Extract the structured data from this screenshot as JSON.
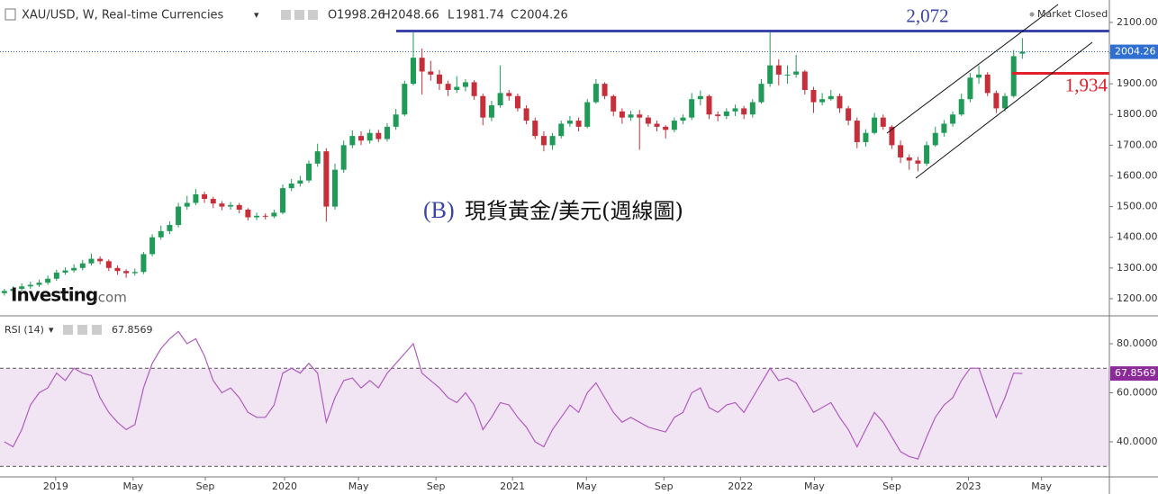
{
  "chart_data": [
    {
      "type": "candlestick",
      "title": "XAU/USD, W, Real-time Currencies",
      "ohlc_labels": [
        "O",
        "H",
        "L",
        "C"
      ],
      "status": "Market Closed",
      "watermark": "Investing",
      "watermark_suffix": ".com",
      "annotation_tag": "(B)",
      "annotation": "現貨黃金/美元(週線圖)",
      "up_color": "#1f9b57",
      "down_color": "#c62f3a",
      "open": [
        1218,
        1225,
        1232,
        1240,
        1245,
        1252,
        1265,
        1285,
        1292,
        1300,
        1315,
        1330,
        1322,
        1300,
        1290,
        1283,
        1287,
        1345,
        1400,
        1420,
        1440,
        1500,
        1512,
        1540,
        1525,
        1510,
        1500,
        1505,
        1490,
        1465,
        1470,
        1468,
        1480,
        1560,
        1575,
        1585,
        1640,
        1680,
        1500,
        1620,
        1700,
        1730,
        1715,
        1740,
        1720,
        1760,
        1800,
        1900,
        1985,
        1940,
        1930,
        1900,
        1880,
        1890,
        1905,
        1860,
        1790,
        1830,
        1870,
        1860,
        1820,
        1780,
        1730,
        1700,
        1730,
        1770,
        1780,
        1760,
        1840,
        1900,
        1860,
        1810,
        1790,
        1800,
        1790,
        1770,
        1760,
        1750,
        1780,
        1790,
        1850,
        1860,
        1800,
        1795,
        1810,
        1820,
        1800,
        1840,
        1900,
        1960,
        1930,
        1930,
        1940,
        1880,
        1840,
        1850,
        1860,
        1820,
        1780,
        1710,
        1740,
        1790,
        1760,
        1700,
        1660,
        1650,
        1640,
        1700,
        1740,
        1770,
        1800,
        1850,
        1920,
        1930,
        1870,
        1820,
        1860,
        1998.26
      ],
      "high": [
        1232,
        1240,
        1250,
        1255,
        1262,
        1275,
        1294,
        1302,
        1312,
        1326,
        1347,
        1338,
        1328,
        1308,
        1296,
        1298,
        1352,
        1410,
        1438,
        1452,
        1512,
        1535,
        1557,
        1548,
        1532,
        1518,
        1515,
        1512,
        1495,
        1480,
        1478,
        1490,
        1572,
        1590,
        1600,
        1650,
        1705,
        1690,
        1640,
        1715,
        1748,
        1745,
        1752,
        1750,
        1772,
        1818,
        1910,
        2075,
        2015,
        1975,
        1945,
        1910,
        1925,
        1915,
        1912,
        1868,
        1845,
        1960,
        1880,
        1868,
        1830,
        1790,
        1745,
        1740,
        1780,
        1795,
        1790,
        1850,
        1915,
        1905,
        1865,
        1820,
        1812,
        1815,
        1798,
        1780,
        1765,
        1790,
        1800,
        1870,
        1878,
        1865,
        1810,
        1820,
        1832,
        1828,
        1850,
        1915,
        2070,
        1980,
        1960,
        1995,
        1945,
        1890,
        1870,
        1880,
        1868,
        1828,
        1790,
        1752,
        1805,
        1800,
        1765,
        1715,
        1670,
        1662,
        1712,
        1760,
        1782,
        1810,
        1868,
        1935,
        1960,
        1938,
        1878,
        1870,
        2010,
        2048.66
      ],
      "low": [
        1210,
        1218,
        1225,
        1232,
        1238,
        1245,
        1258,
        1278,
        1285,
        1292,
        1308,
        1312,
        1290,
        1278,
        1268,
        1275,
        1280,
        1338,
        1392,
        1410,
        1432,
        1490,
        1505,
        1512,
        1495,
        1488,
        1490,
        1478,
        1455,
        1456,
        1458,
        1462,
        1475,
        1550,
        1565,
        1578,
        1630,
        1451,
        1490,
        1610,
        1690,
        1700,
        1705,
        1710,
        1712,
        1750,
        1795,
        1895,
        1865,
        1910,
        1880,
        1860,
        1870,
        1875,
        1848,
        1765,
        1778,
        1822,
        1845,
        1810,
        1768,
        1720,
        1680,
        1685,
        1722,
        1760,
        1745,
        1755,
        1835,
        1850,
        1795,
        1770,
        1780,
        1685,
        1760,
        1745,
        1722,
        1742,
        1768,
        1782,
        1830,
        1785,
        1778,
        1785,
        1795,
        1785,
        1790,
        1835,
        1890,
        1895,
        1900,
        1920,
        1865,
        1805,
        1830,
        1845,
        1805,
        1765,
        1690,
        1695,
        1735,
        1750,
        1688,
        1642,
        1620,
        1615,
        1632,
        1695,
        1728,
        1760,
        1795,
        1840,
        1900,
        1860,
        1805,
        1810,
        1855,
        1981.74
      ],
      "close": [
        1225,
        1232,
        1240,
        1245,
        1252,
        1265,
        1285,
        1292,
        1300,
        1315,
        1330,
        1322,
        1300,
        1290,
        1283,
        1287,
        1345,
        1400,
        1420,
        1440,
        1500,
        1512,
        1540,
        1525,
        1510,
        1500,
        1505,
        1490,
        1465,
        1470,
        1468,
        1480,
        1560,
        1575,
        1585,
        1640,
        1680,
        1500,
        1620,
        1700,
        1730,
        1715,
        1740,
        1720,
        1760,
        1800,
        1900,
        1985,
        1940,
        1930,
        1900,
        1880,
        1890,
        1905,
        1860,
        1790,
        1830,
        1870,
        1860,
        1820,
        1780,
        1730,
        1700,
        1730,
        1770,
        1780,
        1760,
        1840,
        1900,
        1860,
        1810,
        1790,
        1800,
        1790,
        1770,
        1760,
        1750,
        1780,
        1790,
        1850,
        1860,
        1800,
        1795,
        1810,
        1820,
        1800,
        1840,
        1900,
        1960,
        1930,
        1930,
        1940,
        1880,
        1840,
        1850,
        1860,
        1820,
        1780,
        1710,
        1740,
        1790,
        1760,
        1700,
        1660,
        1650,
        1640,
        1700,
        1740,
        1770,
        1800,
        1850,
        1920,
        1930,
        1870,
        1820,
        1860,
        1990,
        2004.26
      ],
      "levels": [
        {
          "value": 2072,
          "label": "2,072",
          "color": "#3b44a8"
        },
        {
          "value": 1934,
          "label": "1,934",
          "color": "#e0202a"
        }
      ],
      "xlim": [
        -0.5,
        127
      ],
      "ylim": [
        1147,
        2173
      ],
      "yticks": [
        {
          "value": 1200,
          "label": "1200.00"
        },
        {
          "value": 1300,
          "label": "1300.00"
        },
        {
          "value": 1400,
          "label": "1400.00"
        },
        {
          "value": 1500,
          "label": "1500.00"
        },
        {
          "value": 1600,
          "label": "1600.00"
        },
        {
          "value": 1700,
          "label": "1700.00"
        },
        {
          "value": 1800,
          "label": "1800.00"
        },
        {
          "value": 1900,
          "label": "1900.00"
        },
        {
          "value": 2000,
          "label": "2000.00"
        },
        {
          "value": 2100,
          "label": "2100.00"
        }
      ]
    },
    {
      "type": "line",
      "title": "RSI (14)",
      "color": "#b05cc0",
      "band": [
        30,
        70
      ],
      "band_color": "#f1e4f3",
      "values": [
        40,
        38,
        45,
        55,
        60,
        62,
        68,
        65,
        70,
        68,
        67,
        58,
        52,
        48,
        45,
        47,
        62,
        72,
        78,
        82,
        85,
        80,
        82,
        75,
        65,
        60,
        62,
        58,
        52,
        50,
        50,
        55,
        68,
        70,
        68,
        72,
        68,
        48,
        58,
        65,
        66,
        62,
        65,
        62,
        68,
        72,
        76,
        80,
        68,
        65,
        62,
        58,
        56,
        60,
        55,
        45,
        50,
        56,
        55,
        50,
        46,
        40,
        38,
        45,
        50,
        55,
        52,
        60,
        64,
        58,
        52,
        48,
        50,
        48,
        46,
        45,
        44,
        50,
        52,
        60,
        62,
        54,
        52,
        55,
        56,
        52,
        58,
        64,
        70,
        65,
        66,
        64,
        58,
        52,
        54,
        56,
        50,
        45,
        38,
        45,
        52,
        48,
        42,
        36,
        34,
        33,
        42,
        50,
        55,
        58,
        65,
        70,
        70,
        60,
        50,
        58,
        68,
        67.8569
      ],
      "xlim": [
        -0.5,
        127
      ],
      "xticks": [
        {
          "value": 5.9,
          "label": "2019"
        },
        {
          "value": 14.8,
          "label": "May"
        },
        {
          "value": 23.1,
          "label": "Sep"
        },
        {
          "value": 32.2,
          "label": "2020"
        },
        {
          "value": 40.7,
          "label": "May"
        },
        {
          "value": 49.6,
          "label": "Sep"
        },
        {
          "value": 58.4,
          "label": "2021"
        },
        {
          "value": 66.9,
          "label": "May"
        },
        {
          "value": 75.8,
          "label": "Sep"
        },
        {
          "value": 84.6,
          "label": "2022"
        },
        {
          "value": 93.1,
          "label": "May"
        },
        {
          "value": 102,
          "label": "Sep"
        },
        {
          "value": 110.8,
          "label": "2023"
        },
        {
          "value": 119.2,
          "label": "May"
        }
      ],
      "ylim": [
        25.7,
        91
      ],
      "yticks": [
        {
          "value": 40,
          "label": "40.0000"
        },
        {
          "value": 60,
          "label": "60.0000"
        },
        {
          "value": 80,
          "label": "80.0000"
        }
      ]
    }
  ]
}
